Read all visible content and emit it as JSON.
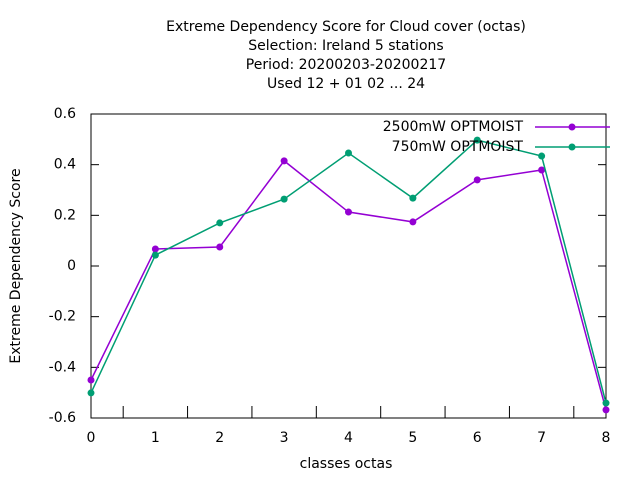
{
  "chart_data": {
    "type": "line",
    "title": [
      "Extreme Dependency Score  for Cloud cover (octas)",
      "Selection: Ireland      5 stations",
      "Period: 20200203-20200217",
      "Used  12 + 01 02 ... 24"
    ],
    "x_label": "classes octas",
    "y_label": "Extreme Dependency Score",
    "x": [
      0,
      1,
      2,
      3,
      4,
      5,
      6,
      7,
      8
    ],
    "series": [
      {
        "name": "2500mW OPTMOIST",
        "color": "#9400d3",
        "values": [
          -0.45,
          0.067,
          0.075,
          0.415,
          0.213,
          0.174,
          0.34,
          0.379,
          -0.568
        ]
      },
      {
        "name": "750mW OPTMOIST",
        "color": "#009e73",
        "values": [
          -0.501,
          0.043,
          0.17,
          0.264,
          0.446,
          0.268,
          0.497,
          0.434,
          -0.541
        ]
      }
    ],
    "xlim": [
      0,
      8
    ],
    "xticks": [
      0,
      1,
      2,
      3,
      4,
      5,
      6,
      7,
      8
    ],
    "xminorticks": [
      0.5,
      1.5,
      2.5,
      3.5,
      4.5,
      5.5,
      6.5,
      7.5
    ],
    "ylim": [
      -0.6,
      0.6
    ],
    "yticks": [
      -0.6,
      -0.4,
      -0.2,
      0,
      0.2,
      0.4,
      0.6
    ],
    "legend": "top-right",
    "grid": false
  }
}
